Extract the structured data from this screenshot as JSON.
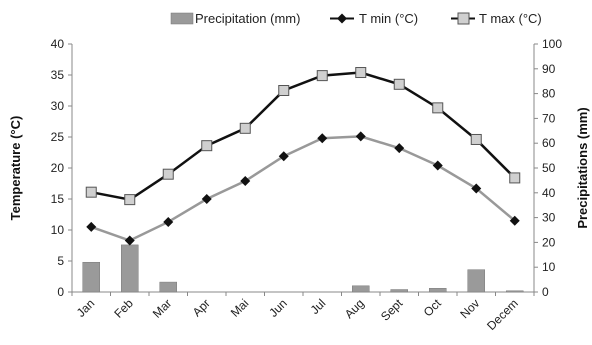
{
  "chart_data": {
    "type": "bar+line",
    "categories": [
      "Jan",
      "Feb",
      "Mar",
      "Apr",
      "Mai",
      "Jun",
      "Jul",
      "Aug",
      "Sept",
      "Oct",
      "Nov",
      "Decem"
    ],
    "y_left": {
      "label": "Temperature (°C)",
      "range": [
        0,
        40
      ],
      "ticks": [
        0,
        5,
        10,
        15,
        20,
        25,
        30,
        35,
        40
      ]
    },
    "y_right": {
      "label": "Precipitations (mm)",
      "range": [
        0,
        100
      ],
      "ticks": [
        0,
        10,
        20,
        30,
        40,
        50,
        60,
        70,
        80,
        90,
        100
      ]
    },
    "series": [
      {
        "name": "Precipitation (mm)",
        "kind": "bar",
        "axis": "right",
        "color": "#9a9a9a",
        "values": [
          12,
          19,
          4,
          0,
          0,
          0,
          0,
          2.5,
          1,
          1.5,
          9,
          0.5
        ]
      },
      {
        "name": "T min (°C)",
        "kind": "line",
        "axis": "left",
        "color": "#999999",
        "marker": "diamond",
        "values": [
          10.5,
          8.3,
          11.3,
          15.0,
          17.9,
          21.9,
          24.8,
          25.1,
          23.2,
          20.4,
          16.7,
          11.5
        ]
      },
      {
        "name": "T max (°C)",
        "kind": "line",
        "axis": "left",
        "color": "#111111",
        "marker": "square",
        "values": [
          16.1,
          14.9,
          19.0,
          23.6,
          26.4,
          32.5,
          34.9,
          35.4,
          33.5,
          29.7,
          24.6,
          18.4
        ]
      }
    ],
    "grid": false,
    "legend": "top"
  }
}
